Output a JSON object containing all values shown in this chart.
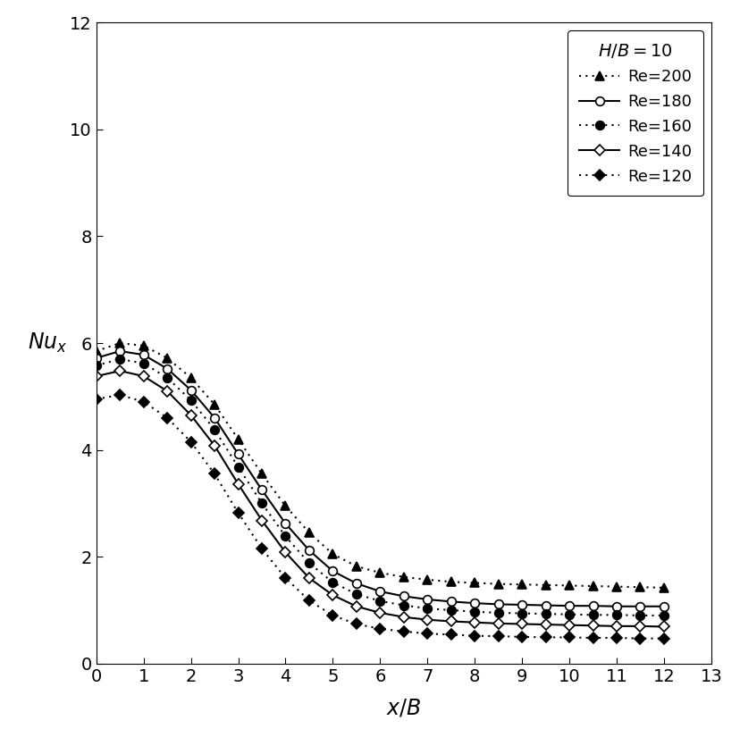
{
  "title": "",
  "ylabel": "Nu_x",
  "xlim": [
    0,
    13
  ],
  "ylim": [
    0,
    12
  ],
  "xticks": [
    0,
    1,
    2,
    3,
    4,
    5,
    6,
    7,
    8,
    9,
    10,
    11,
    12,
    13
  ],
  "yticks": [
    0,
    2,
    4,
    6,
    8,
    10,
    12
  ],
  "legend_title": "H/B=10",
  "series": [
    {
      "label": "Re=200",
      "linestyle": "dotted",
      "marker": "^",
      "marker_filled": true,
      "color": "black",
      "x": [
        0.0,
        0.5,
        1.0,
        1.5,
        2.0,
        2.5,
        3.0,
        3.5,
        4.0,
        4.5,
        5.0,
        5.5,
        6.0,
        6.5,
        7.0,
        7.5,
        8.0,
        8.5,
        9.0,
        9.5,
        10.0,
        10.5,
        11.0,
        11.5,
        12.0
      ],
      "y": [
        5.85,
        6.0,
        5.95,
        5.72,
        5.35,
        4.85,
        4.2,
        3.55,
        2.95,
        2.45,
        2.05,
        1.82,
        1.7,
        1.62,
        1.57,
        1.53,
        1.51,
        1.49,
        1.48,
        1.47,
        1.46,
        1.45,
        1.44,
        1.43,
        1.42
      ]
    },
    {
      "label": "Re=180",
      "linestyle": "solid",
      "marker": "o",
      "marker_filled": false,
      "color": "black",
      "x": [
        0.0,
        0.5,
        1.0,
        1.5,
        2.0,
        2.5,
        3.0,
        3.5,
        4.0,
        4.5,
        5.0,
        5.5,
        6.0,
        6.5,
        7.0,
        7.5,
        8.0,
        8.5,
        9.0,
        9.5,
        10.0,
        10.5,
        11.0,
        11.5,
        12.0
      ],
      "y": [
        5.72,
        5.85,
        5.78,
        5.52,
        5.12,
        4.6,
        3.92,
        3.25,
        2.62,
        2.12,
        1.73,
        1.5,
        1.35,
        1.26,
        1.2,
        1.16,
        1.13,
        1.11,
        1.1,
        1.09,
        1.08,
        1.08,
        1.07,
        1.07,
        1.07
      ]
    },
    {
      "label": "Re=160",
      "linestyle": "dotted",
      "marker": "o",
      "marker_filled": true,
      "color": "black",
      "x": [
        0.0,
        0.5,
        1.0,
        1.5,
        2.0,
        2.5,
        3.0,
        3.5,
        4.0,
        4.5,
        5.0,
        5.5,
        6.0,
        6.5,
        7.0,
        7.5,
        8.0,
        8.5,
        9.0,
        9.5,
        10.0,
        10.5,
        11.0,
        11.5,
        12.0
      ],
      "y": [
        5.58,
        5.7,
        5.62,
        5.35,
        4.93,
        4.38,
        3.68,
        3.0,
        2.38,
        1.88,
        1.52,
        1.3,
        1.17,
        1.09,
        1.03,
        1.0,
        0.97,
        0.95,
        0.94,
        0.93,
        0.92,
        0.91,
        0.91,
        0.9,
        0.9
      ]
    },
    {
      "label": "Re=140",
      "linestyle": "solid",
      "marker": "D",
      "marker_filled": false,
      "color": "black",
      "x": [
        0.0,
        0.5,
        1.0,
        1.5,
        2.0,
        2.5,
        3.0,
        3.5,
        4.0,
        4.5,
        5.0,
        5.5,
        6.0,
        6.5,
        7.0,
        7.5,
        8.0,
        8.5,
        9.0,
        9.5,
        10.0,
        10.5,
        11.0,
        11.5,
        12.0
      ],
      "y": [
        5.38,
        5.48,
        5.38,
        5.1,
        4.65,
        4.08,
        3.36,
        2.68,
        2.08,
        1.6,
        1.28,
        1.07,
        0.95,
        0.87,
        0.82,
        0.79,
        0.77,
        0.75,
        0.74,
        0.73,
        0.72,
        0.71,
        0.7,
        0.7,
        0.69
      ]
    },
    {
      "label": "Re=120",
      "linestyle": "dotted",
      "marker": "D",
      "marker_filled": true,
      "color": "black",
      "x": [
        0.0,
        0.5,
        1.0,
        1.5,
        2.0,
        2.5,
        3.0,
        3.5,
        4.0,
        4.5,
        5.0,
        5.5,
        6.0,
        6.5,
        7.0,
        7.5,
        8.0,
        8.5,
        9.0,
        9.5,
        10.0,
        10.5,
        11.0,
        11.5,
        12.0
      ],
      "y": [
        4.95,
        5.03,
        4.9,
        4.6,
        4.15,
        3.55,
        2.82,
        2.15,
        1.6,
        1.18,
        0.9,
        0.74,
        0.65,
        0.6,
        0.56,
        0.54,
        0.52,
        0.51,
        0.5,
        0.49,
        0.49,
        0.48,
        0.48,
        0.47,
        0.47
      ]
    }
  ],
  "background_color": "#ffffff",
  "plot_bg_color": "#ffffff",
  "figsize": [
    8.29,
    8.44
  ],
  "dpi": 100
}
